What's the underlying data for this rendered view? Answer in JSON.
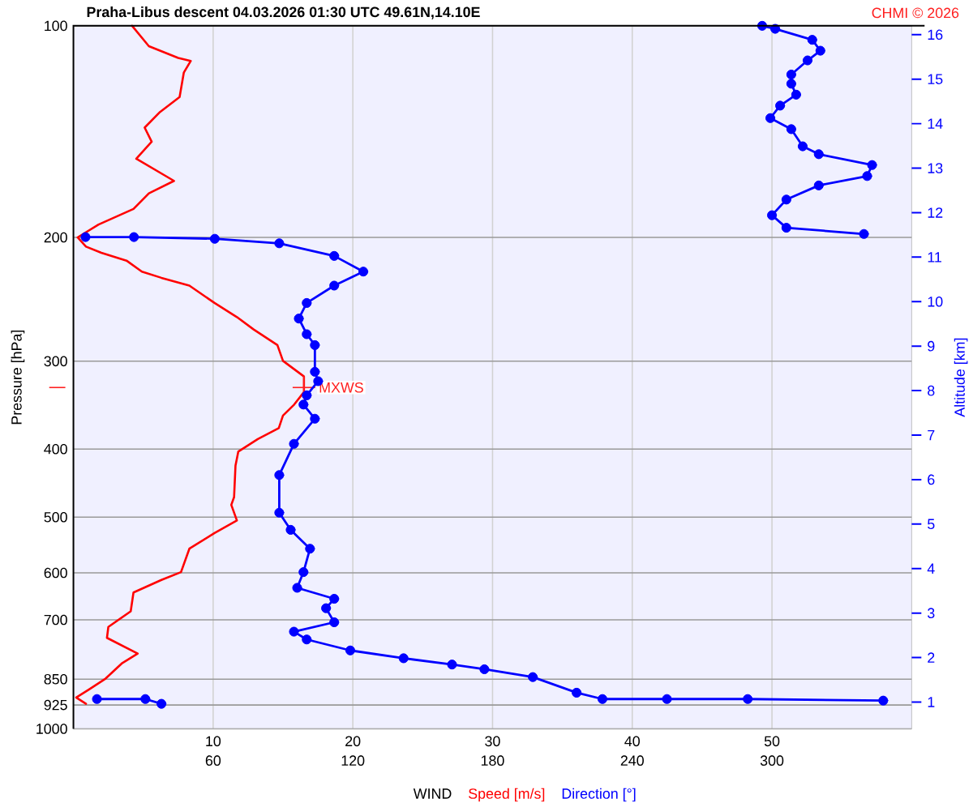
{
  "chart_data": {
    "type": "line",
    "title": "Praha-Libus   descent   04.03.2026 01:30 UTC  49.61N,14.10E",
    "xlabel": "WIND",
    "ylabel": "Pressure [hPa]",
    "y2label": "Altitude [km]",
    "annotations": [
      "CHMI © 2026",
      {
        "text": "MXWS",
        "x": 16.5,
        "y": 327
      }
    ],
    "log": "y",
    "grid": true,
    "legend": "bottom",
    "xlim": [
      0,
      60
    ],
    "x2lim": [
      0,
      360
    ],
    "ylim": [
      1000,
      100
    ],
    "y2lim": [
      0.4,
      16.2
    ],
    "xticks": [
      10,
      20,
      30,
      40,
      50
    ],
    "x2ticks": [
      60,
      120,
      180,
      240,
      300
    ],
    "yticks": [
      100,
      200,
      300,
      400,
      500,
      600,
      700,
      850,
      925,
      1000
    ],
    "y2ticks": [
      1,
      2,
      3,
      4,
      5,
      6,
      7,
      8,
      9,
      10,
      11,
      12,
      13,
      14,
      15,
      16
    ],
    "series": [
      {
        "name": "Speed [m/s]",
        "color": "#ff0000",
        "x": [
          4.2,
          5.4,
          7.5,
          8.4,
          7.9,
          7.6,
          6.2,
          5.1,
          5.6,
          4.5,
          7.2,
          5.4,
          4.3,
          1.8,
          0.3,
          0.9,
          2.0,
          3.8,
          4.9,
          6.3,
          8.3,
          10.1,
          11.7,
          12.9,
          14.6,
          15.0,
          16.5,
          16.5,
          15.8,
          15.0,
          14.7,
          13.2,
          11.8,
          11.6,
          11.5,
          11.3,
          11.7,
          10.1,
          8.3,
          7.7,
          6.3,
          4.3,
          4.1,
          2.5,
          2.4,
          4.6,
          3.5,
          2.3,
          1.1,
          0.2,
          0.9
        ],
        "values": [
          100,
          106.9,
          111.1,
          112.2,
          116.6,
          126.3,
          132.6,
          139.6,
          146.2,
          154.6,
          166.2,
          173.1,
          182.2,
          191.8,
          200,
          206.1,
          210.3,
          215.8,
          223.7,
          228.3,
          234.2,
          247.9,
          259.6,
          270.4,
          284.6,
          299.7,
          315.4,
          331.9,
          345.8,
          358.5,
          373.5,
          387.2,
          403.4,
          422.5,
          468.1,
          480.3,
          505.4,
          526.6,
          554.4,
          598.6,
          614.2,
          639.9,
          680.6,
          716.3,
          742.5,
          781.7,
          806.2,
          848.5,
          879.5,
          902.6,
          921.4
        ]
      },
      {
        "name": "Direction [°]",
        "axis": "x2",
        "marker": "circle",
        "color": "#0000ff",
        "x": [
          295.8,
          301.4,
          317.3,
          320.8,
          315.3,
          308.3,
          308.3,
          310.4,
          303.5,
          299.3,
          308.3,
          313.2,
          320.1,
          343.0,
          340.9,
          320.1,
          306.2,
          300.0,
          306.2,
          339.5,
          null,
          5.2,
          26.0,
          60.7,
          88.4,
          112.0,
          124.5,
          112.0,
          100.2,
          96.8,
          100.2,
          103.7,
          103.7,
          105.1,
          100.2,
          98.8,
          103.7,
          94.7,
          88.4,
          88.4,
          93.3,
          101.6,
          98.8,
          96.1,
          112.0,
          108.5,
          112.0,
          94.7,
          100.2,
          118.9,
          141.8,
          162.6,
          176.5,
          197.3,
          216.1,
          227.2,
          254.9,
          289.6,
          347.8,
          null,
          10.1,
          30.9,
          37.8
        ],
        "values": [
          100,
          101.0,
          104.7,
          108.5,
          112.0,
          117.3,
          120.9,
          125.3,
          129.9,
          135.3,
          140.3,
          148.4,
          152.3,
          157.8,
          163.6,
          168.7,
          176.7,
          186.0,
          193.8,
          197.8,
          null,
          199.8,
          199.8,
          200.9,
          203.9,
          212.5,
          223.7,
          234.2,
          247.9,
          260.9,
          274.6,
          284.6,
          310.6,
          320.3,
          335.5,
          345.8,
          362.2,
          393.3,
          435.6,
          492.7,
          521.2,
          554.4,
          598.6,
          630.2,
          653.3,
          673.7,
          705.5,
          727.5,
          746.4,
          773.7,
          793.8,
          810.2,
          822.8,
          844.2,
          888.5,
          907.1,
          907.1,
          907.1,
          911.8,
          null,
          907.1,
          907.1,
          921.4
        ]
      }
    ]
  }
}
